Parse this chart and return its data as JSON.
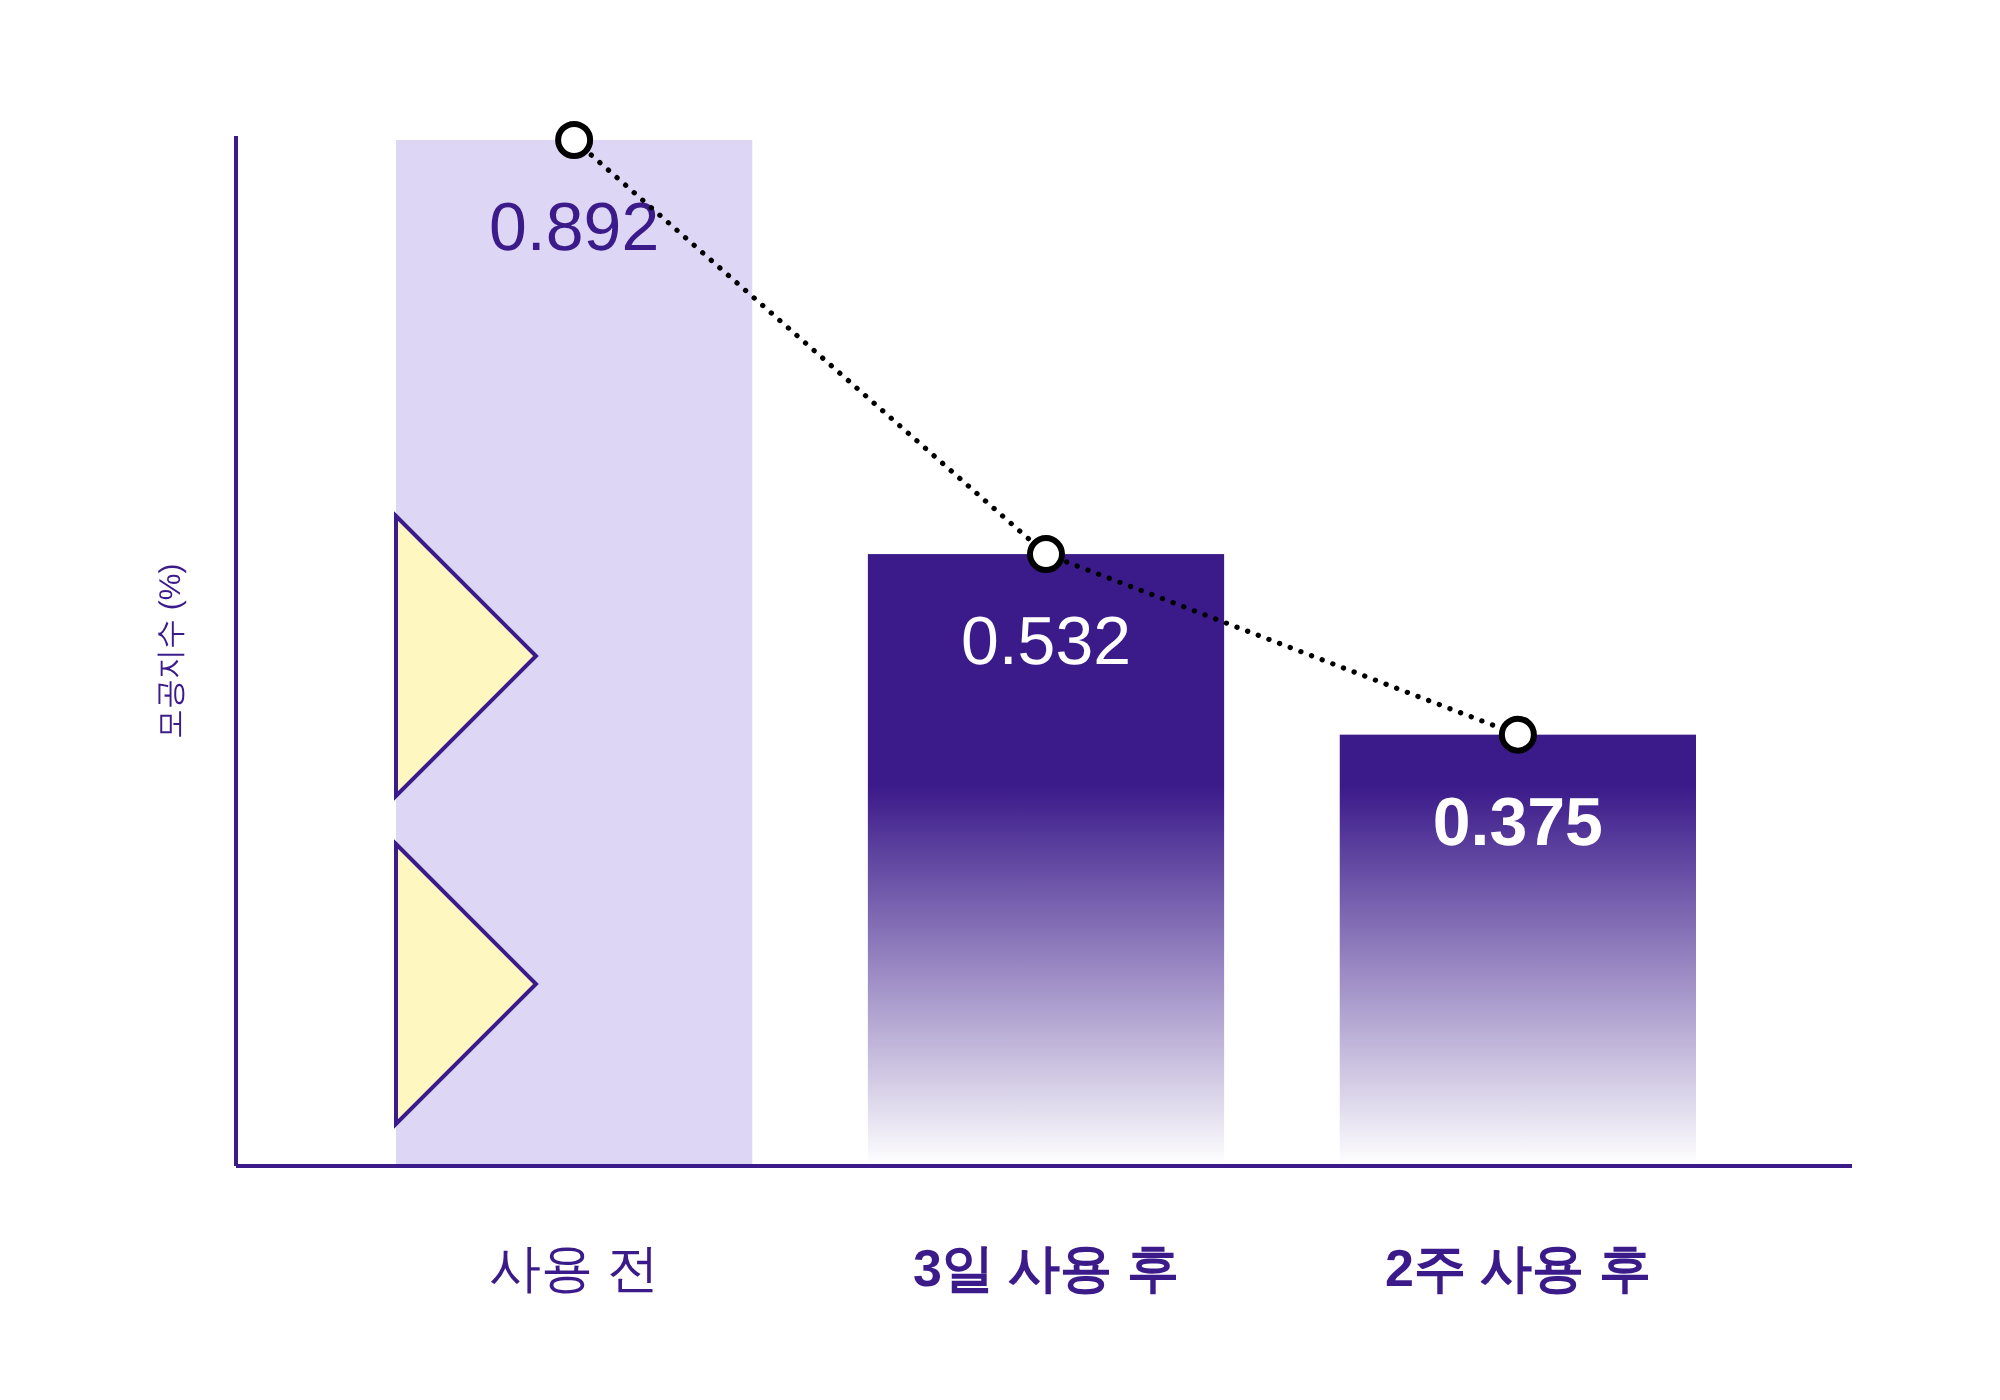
{
  "chart_data": {
    "type": "bar",
    "ylabel": "모공지수 (%)",
    "categories": [
      "사용 전",
      "3일 사용 후",
      "2주 사용 후"
    ],
    "series": [
      {
        "colors": [
          "#ddd6f5",
          "#3b1a8a",
          "#3b1a8a"
        ],
        "values": [
          0.892,
          0.532,
          0.375
        ],
        "value_labels": [
          "0.892",
          "0.532",
          "0.375"
        ]
      },
      {
        "type": "line",
        "color": "#000000",
        "values": [
          0.892,
          0.532,
          0.375
        ]
      }
    ],
    "marker": "circle",
    "line_style": "dotted"
  }
}
